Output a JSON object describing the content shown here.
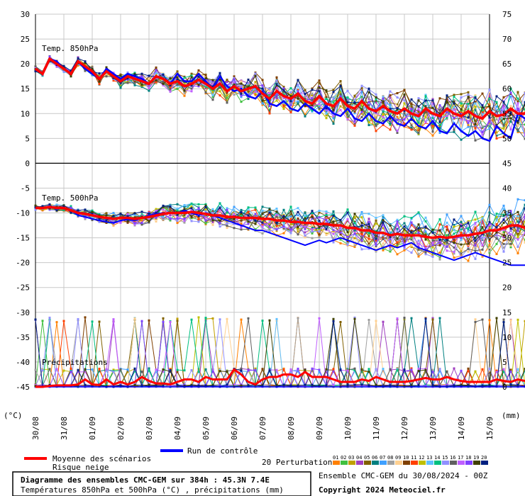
{
  "chart_data": {
    "type": "line",
    "title": "Diagramme des ensembles CMC-GEM sur 384h : 45.3N 7.4E",
    "subtitle": "Températures 850hPa et 500hPa (°C) , précipitations (mm)",
    "run_label": "Ensemble CMC-GEM du 30/08/2024 - 00Z",
    "copyright": "Copyright 2024 Meteociel.fr",
    "left_unit": "(°C)",
    "right_unit": "(mm)",
    "left_ylim": [
      -45,
      30
    ],
    "right_ylim": [
      0,
      75
    ],
    "left_ticks": [
      30,
      25,
      20,
      15,
      10,
      5,
      0,
      -5,
      -10,
      -15,
      -20,
      -25,
      -30,
      -35,
      -40,
      -45
    ],
    "right_ticks": [
      75,
      70,
      65,
      60,
      55,
      50,
      45,
      40,
      35,
      30,
      25,
      20,
      15,
      10,
      5,
      0
    ],
    "x_labels": [
      "30/08",
      "31/08",
      "01/09",
      "02/09",
      "03/09",
      "04/09",
      "05/09",
      "06/09",
      "07/09",
      "08/09",
      "09/09",
      "10/09",
      "11/09",
      "12/09",
      "13/09",
      "14/09",
      "15/09"
    ],
    "grid": true,
    "panel_labels": {
      "t850": "Temp. 850hPa",
      "t500": "Temp. 500hPa",
      "precip": "Précipitations"
    },
    "legend": {
      "mean": "Moyenne des scénarios",
      "snow": "Risque neige",
      "control": "Run de contrôle",
      "perturbations": "20 Perturbations",
      "perturbation_ids": [
        "01",
        "02",
        "03",
        "04",
        "05",
        "06",
        "07",
        "08",
        "09",
        "10",
        "11",
        "12",
        "13",
        "14",
        "15",
        "16",
        "17",
        "18",
        "19",
        "20"
      ],
      "perturbation_colors": [
        "#ff8000",
        "#40c040",
        "#c0a000",
        "#a040c0",
        "#806000",
        "#008080",
        "#40a0ff",
        "#a0a0a0",
        "#ffd090",
        "#804000",
        "#ff4000",
        "#c0c000",
        "#60c0ff",
        "#00c080",
        "#9090ff",
        "#606060",
        "#c060ff",
        "#8040ff",
        "#404000",
        "#002080"
      ],
      "mean_color": "#ff0000",
      "control_color": "#0000ff"
    },
    "series": [
      {
        "name": "Moyenne des scénarios",
        "color": "#ff0000",
        "t850": [
          19,
          18,
          21,
          20,
          19,
          18,
          20.5,
          19.5,
          18.5,
          17,
          18.5,
          17.5,
          16.5,
          17.5,
          17,
          16.5,
          16,
          17.5,
          17,
          16,
          16.5,
          15.5,
          16,
          16.8,
          16,
          15,
          16,
          14.5,
          15.5,
          14.5,
          15,
          15.5,
          14,
          13,
          14.5,
          13.5,
          13,
          14,
          12.5,
          12,
          13.5,
          12,
          11.5,
          13,
          11.5,
          11,
          12.5,
          11,
          10.5,
          11.5,
          10.5,
          10,
          11,
          10,
          9.5,
          11,
          10,
          9.5,
          11,
          10,
          9.5,
          10.5,
          9.5,
          9,
          10.5,
          9.5,
          9.8,
          11,
          10,
          10
        ],
        "t500": [
          -9,
          -9,
          -8.8,
          -9,
          -9,
          -9.5,
          -10,
          -10.2,
          -10.5,
          -10.8,
          -11,
          -11.2,
          -11,
          -11,
          -11.2,
          -11,
          -10.8,
          -10.5,
          -10.2,
          -10,
          -10,
          -10,
          -9.8,
          -10,
          -10.2,
          -10.5,
          -10.5,
          -10.8,
          -10.8,
          -11,
          -11,
          -11,
          -11.2,
          -11.2,
          -11.5,
          -11.5,
          -11.8,
          -11.8,
          -12,
          -12,
          -12.2,
          -12.2,
          -12.5,
          -12.5,
          -13,
          -13,
          -13.5,
          -13.5,
          -14,
          -14,
          -14.5,
          -14.2,
          -14.5,
          -14.5,
          -14.5,
          -14.8,
          -15,
          -14.8,
          -15,
          -14.8,
          -14.5,
          -14.5,
          -14.2,
          -14,
          -13.5,
          -13.5,
          -13,
          -12.5,
          -12.5,
          -13
        ],
        "precip": [
          0,
          0,
          0.2,
          0.3,
          0.3,
          0.3,
          0.5,
          1.5,
          0.5,
          0.4,
          1.5,
          0.5,
          1,
          0.5,
          1,
          2,
          1.2,
          0.7,
          0.7,
          0.5,
          1,
          1.5,
          1.5,
          1,
          2,
          1.5,
          1.5,
          1.5,
          3.5,
          2.5,
          1,
          0.5,
          1.5,
          2,
          2,
          2.5,
          2.5,
          2,
          3,
          2,
          2,
          2,
          1.5,
          1,
          1,
          1,
          1.5,
          1.2,
          2,
          1.5,
          1,
          1,
          1,
          1.2,
          1.5,
          1.8,
          1.5,
          1.5,
          2,
          1.5,
          1.2,
          1,
          1,
          1,
          1,
          1.5,
          1.2,
          1,
          1.5,
          1.2
        ]
      },
      {
        "name": "Run de contrôle",
        "color": "#0000ff",
        "t850": [
          19,
          18,
          21,
          20.5,
          19,
          18,
          20.5,
          19,
          18,
          17,
          19,
          18,
          17,
          18,
          17.5,
          17,
          16,
          17.5,
          17,
          16,
          18,
          16.5,
          16.5,
          18,
          16.5,
          15,
          17.5,
          15.5,
          14.5,
          15,
          13.5,
          13,
          14.5,
          12,
          11.5,
          12.5,
          11,
          10.5,
          12,
          11,
          10,
          11.5,
          10,
          9.5,
          11,
          9,
          8.5,
          10,
          8.5,
          8,
          9.5,
          8,
          7.5,
          9,
          7.5,
          7,
          8.5,
          6.5,
          6,
          8,
          6.5,
          5.5,
          6.5,
          5,
          4.5,
          7.5,
          6,
          5,
          10,
          9
        ],
        "t500": [
          -9,
          -9,
          -8.8,
          -9,
          -9,
          -9.5,
          -10.5,
          -10.8,
          -11.2,
          -11.5,
          -11.8,
          -12,
          -11.5,
          -11.3,
          -11.5,
          -11,
          -10.5,
          -10.2,
          -10,
          -10,
          -10,
          -9.5,
          -10,
          -10.5,
          -10,
          -10.5,
          -11,
          -11.5,
          -12,
          -12.5,
          -13,
          -13.5,
          -13.5,
          -14,
          -14.5,
          -15,
          -15.5,
          -16,
          -16.5,
          -16,
          -15.5,
          -16,
          -15.5,
          -15,
          -15.5,
          -16,
          -16.5,
          -17,
          -17.5,
          -17,
          -16.5,
          -17,
          -16.5,
          -16,
          -17,
          -17.5,
          -18,
          -18.5,
          -19,
          -19.5,
          -19,
          -18.5,
          -18,
          -18.5,
          -19,
          -19.5,
          -20,
          -20.5,
          -20.5,
          -20.5
        ],
        "precip": [
          0,
          0,
          0,
          0,
          0,
          0,
          0,
          0,
          0,
          0,
          0,
          0,
          0,
          0,
          0,
          0,
          0,
          0,
          0,
          0,
          0,
          0,
          0,
          0,
          0,
          0,
          0,
          0,
          0,
          0,
          0,
          0,
          0,
          0,
          0,
          0,
          0,
          0,
          0,
          0,
          0,
          0,
          0,
          0,
          0,
          0,
          0,
          0,
          0,
          0,
          0,
          0,
          0,
          0,
          0,
          0,
          0,
          0,
          0,
          0,
          0,
          0,
          0,
          0,
          0,
          0,
          0,
          0,
          0,
          0
        ]
      }
    ]
  }
}
